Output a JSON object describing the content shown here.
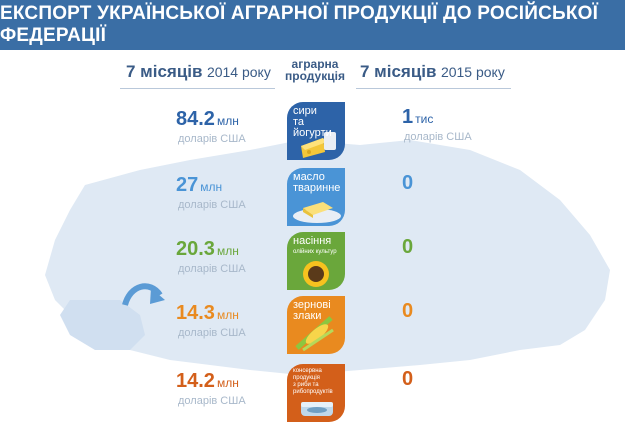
{
  "title": "ЕКСПОРТ УКРАЇНСЬКОЇ АГРАРНОЇ ПРОДУКЦІЇ ДО РОСІЙСЬКОЇ ФЕДЕРАЦІЇ",
  "header": {
    "left_period_bold": "7 місяців",
    "left_year": "2014 року",
    "middle_line1": "аграрна",
    "middle_line2": "продукція",
    "right_period_bold": "7 місяців",
    "right_year": "2015 року"
  },
  "rows": [
    {
      "product_line1": "сири",
      "product_line2": "та йогурти",
      "product_line3": "",
      "val_2014": "84.2",
      "unit_2014": "млн",
      "sub_2014": "доларів США",
      "val_2015": "1",
      "unit_2015": "тис",
      "sub_2015": "доларів США",
      "color": "#2d63a8",
      "icon": "cheese-icon"
    },
    {
      "product_line1": "масло",
      "product_line2": "тваринне",
      "product_line3": "",
      "val_2014": "27",
      "unit_2014": "млн",
      "sub_2014": "доларів США",
      "val_2015": "0",
      "unit_2015": "",
      "sub_2015": "",
      "color": "#4a94d6",
      "icon": "butter-icon"
    },
    {
      "product_line1": "насіння",
      "product_line2": "олійних культур",
      "product_line3": "",
      "val_2014": "20.3",
      "unit_2014": "млн",
      "sub_2014": "доларів США",
      "val_2015": "0",
      "unit_2015": "",
      "sub_2015": "",
      "color": "#6aa73b",
      "icon": "sunflower-icon"
    },
    {
      "product_line1": "зернові",
      "product_line2": "злаки",
      "product_line3": "",
      "val_2014": "14.3",
      "unit_2014": "млн",
      "sub_2014": "доларів США",
      "val_2015": "0",
      "unit_2015": "",
      "sub_2015": "",
      "color": "#e98a1f",
      "icon": "wheat-icon"
    },
    {
      "product_line1": "консервна продукція",
      "product_line2": "з риби та",
      "product_line3": "рибопродуктів",
      "val_2014": "14.2",
      "unit_2014": "млн",
      "sub_2014": "доларів США",
      "val_2015": "0",
      "unit_2015": "",
      "sub_2015": "",
      "color": "#d35f1a",
      "icon": "fish-can-icon"
    }
  ]
}
